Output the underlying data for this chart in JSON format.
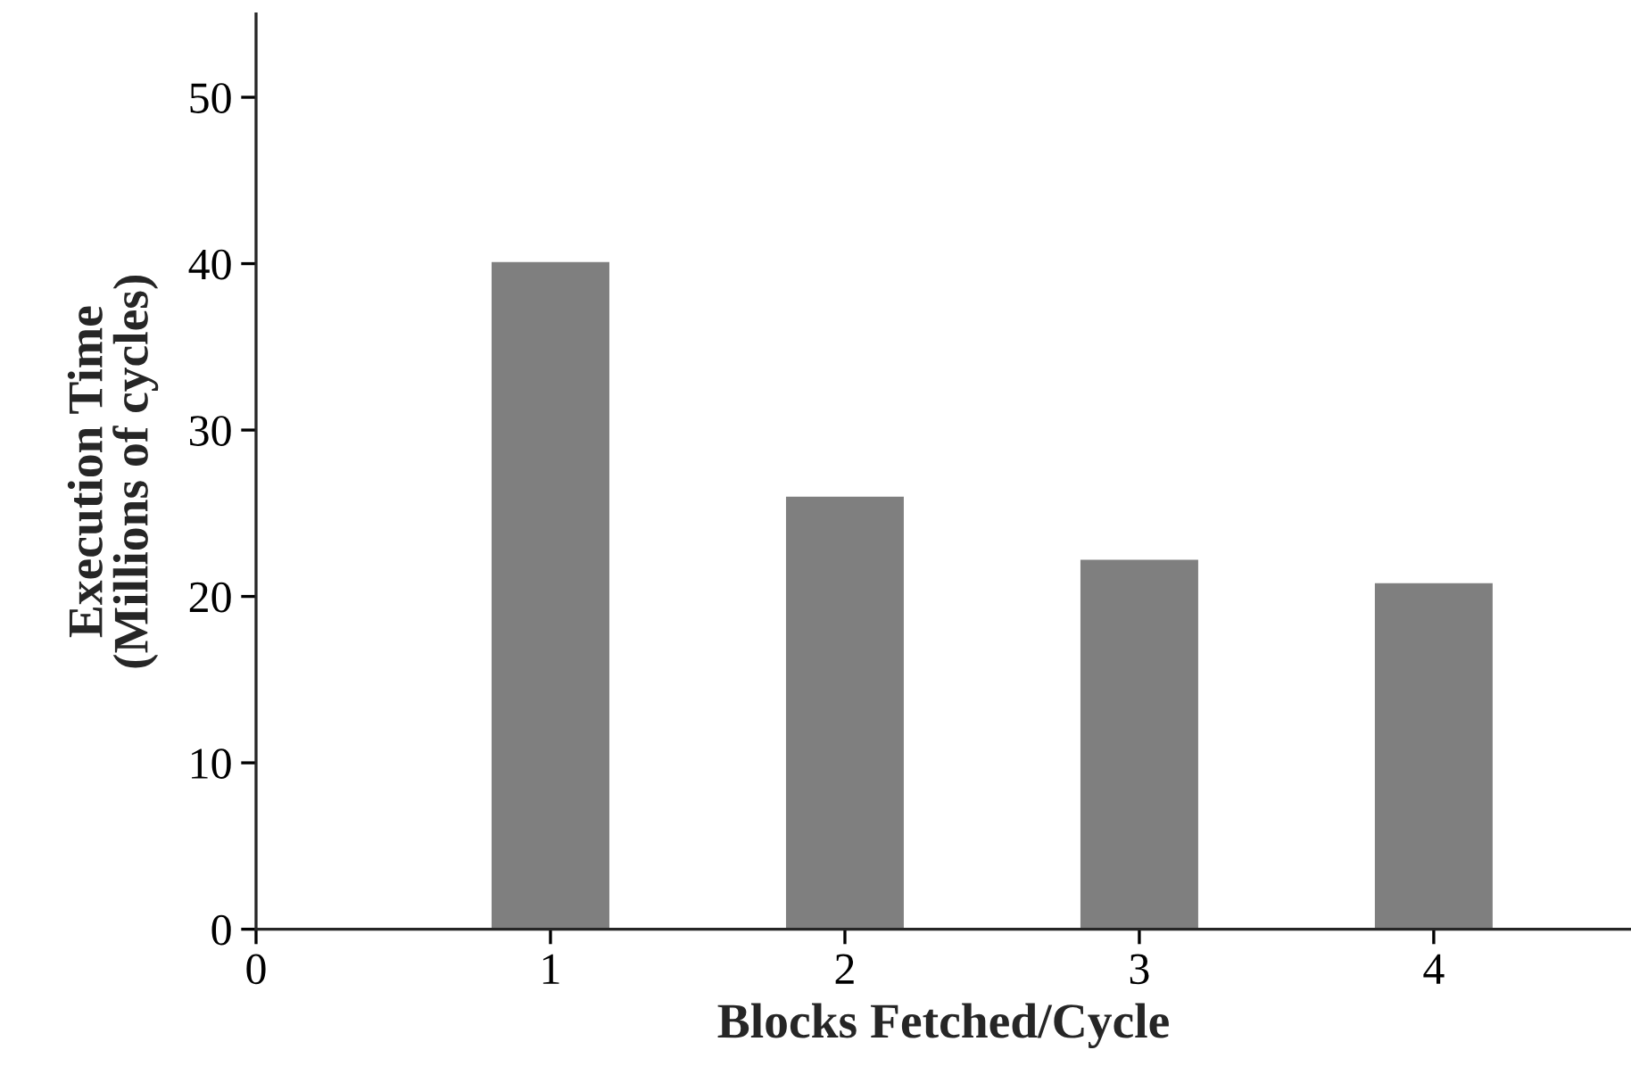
{
  "chart_data": {
    "type": "bar",
    "xlabel": "Blocks Fetched/Cycle",
    "ylabel": "Execution Time\n(Millions of cycles)",
    "x": [
      1,
      2,
      3,
      4
    ],
    "values": [
      40.1,
      26.0,
      22.2,
      20.8
    ],
    "color": "#7f7f7f",
    "xlim": [
      0,
      4.67
    ],
    "xticks": [
      0,
      1,
      2,
      3,
      4
    ],
    "ylim": [
      0,
      55
    ],
    "yticks": [
      0,
      10,
      20,
      30,
      40,
      50
    ],
    "grid": false
  }
}
